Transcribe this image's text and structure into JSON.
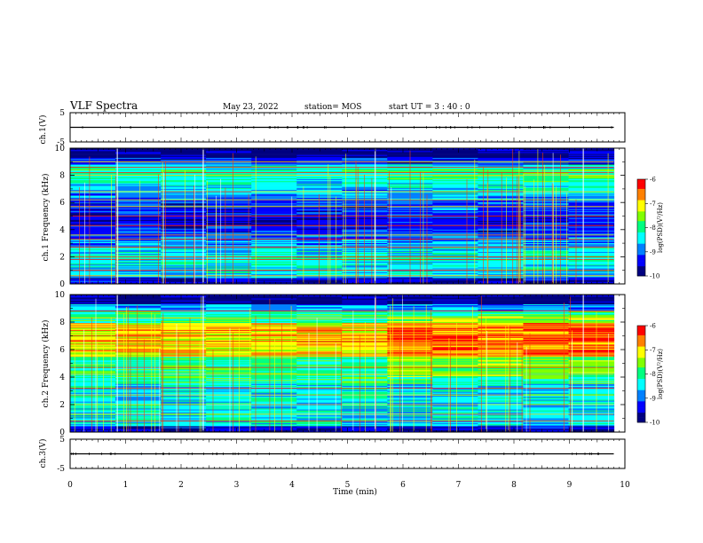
{
  "header": {
    "title": "VLF Spectra",
    "date": "May 23, 2022",
    "station": "station= MOS",
    "start": "start  UT  =   3  : 40 : 0"
  },
  "colors": {
    "colormap": [
      "#000080",
      "#0000ff",
      "#0080ff",
      "#00ffff",
      "#00ff80",
      "#80ff00",
      "#ffff00",
      "#ff8000",
      "#ff0000",
      "#ffffff"
    ]
  },
  "chart_data": [
    {
      "type": "line",
      "panel": "ch1-waveform",
      "ylabel": "ch.1(V)",
      "ylim": [
        -5,
        5
      ],
      "yticks": [
        "5",
        "-5"
      ],
      "xlim": [
        0,
        10
      ],
      "series": [
        {
          "x": [
            0,
            9.8
          ],
          "y": [
            0,
            0
          ]
        }
      ]
    },
    {
      "type": "heatmap",
      "panel": "ch1-spectrogram",
      "ylabel": "ch.1  Frequency (kHz)",
      "ylim": [
        0,
        10
      ],
      "yticks": [
        "0",
        "2",
        "4",
        "6",
        "8",
        "10"
      ],
      "xlim": [
        0,
        10
      ],
      "colorbar": {
        "label": "log(PSD)(V²/Hz)",
        "range": [
          -10,
          -6
        ],
        "ticks": [
          "-6",
          "-7",
          "-8",
          "-9",
          "-10"
        ]
      }
    },
    {
      "type": "heatmap",
      "panel": "ch2-spectrogram",
      "ylabel": "ch.2  Frequency (kHz)",
      "ylim": [
        0,
        10
      ],
      "yticks": [
        "0",
        "2",
        "4",
        "6",
        "8",
        "10"
      ],
      "xlim": [
        0,
        10
      ],
      "colorbar": {
        "label": "log(PSD)(V²/Hz)",
        "range": [
          -10,
          -6
        ],
        "ticks": [
          "-6",
          "-7",
          "-8",
          "-9",
          "-10"
        ]
      }
    },
    {
      "type": "line",
      "panel": "ch3-waveform",
      "ylabel": "ch.3(V)",
      "ylim": [
        -5,
        5
      ],
      "yticks": [
        "5",
        "-5"
      ],
      "xlim": [
        0,
        10
      ],
      "xlabel": "Time  (min)",
      "xticks": [
        "0",
        "1",
        "2",
        "3",
        "4",
        "5",
        "6",
        "7",
        "8",
        "9",
        "10"
      ],
      "series": [
        {
          "x": [
            0,
            9.8
          ],
          "y": [
            0,
            0
          ]
        }
      ]
    }
  ]
}
